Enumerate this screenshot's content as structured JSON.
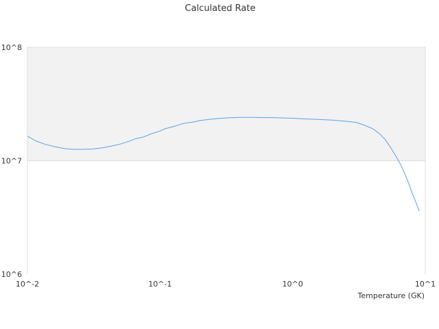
{
  "chart_data": {
    "type": "line",
    "title": "Calculated Rate",
    "xlabel": "Temperature (GK)",
    "ylabel": "",
    "x_scale": "log",
    "y_scale": "log",
    "xlim": [
      0.01,
      10
    ],
    "ylim": [
      1000000,
      100000000
    ],
    "x_ticks": [
      "10^-2",
      "10^-1",
      "10^0",
      "10^1"
    ],
    "y_ticks": [
      "10^6",
      "10^7",
      "10^8"
    ],
    "grid": false,
    "legend": "none",
    "colors": {
      "line": "#5b9fe3",
      "band": "#f2f2f2",
      "border": "#dddddd",
      "text": "#333333"
    },
    "series": [
      {
        "x": [
          0.01,
          0.0115,
          0.0135,
          0.016,
          0.019,
          0.022,
          0.026,
          0.031,
          0.037,
          0.042,
          0.05,
          0.058,
          0.065,
          0.075,
          0.085,
          0.1,
          0.11,
          0.13,
          0.15,
          0.18,
          0.2,
          0.24,
          0.28,
          0.33,
          0.4,
          0.5,
          0.6,
          0.7,
          1.0,
          1.2,
          1.6,
          2.0,
          2.5,
          3.0,
          3.5,
          4.0,
          4.5,
          5.0,
          5.5,
          6.0,
          6.5,
          7.0,
          7.5,
          8.0,
          8.5,
          9.0
        ],
        "y": [
          16500000,
          15000000,
          14000000,
          13300000,
          12800000,
          12600000,
          12600000,
          12700000,
          13000000,
          13400000,
          14000000,
          14800000,
          15600000,
          16200000,
          17200000,
          18300000,
          19200000,
          20200000,
          21300000,
          22000000,
          22600000,
          23200000,
          23600000,
          23900000,
          24100000,
          24100000,
          24000000,
          24000000,
          23700000,
          23400000,
          23100000,
          22800000,
          22300000,
          21800000,
          20500000,
          19200000,
          17400000,
          15300000,
          13000000,
          11000000,
          9300000,
          7700000,
          6300000,
          5100000,
          4300000,
          3600000
        ]
      }
    ]
  }
}
